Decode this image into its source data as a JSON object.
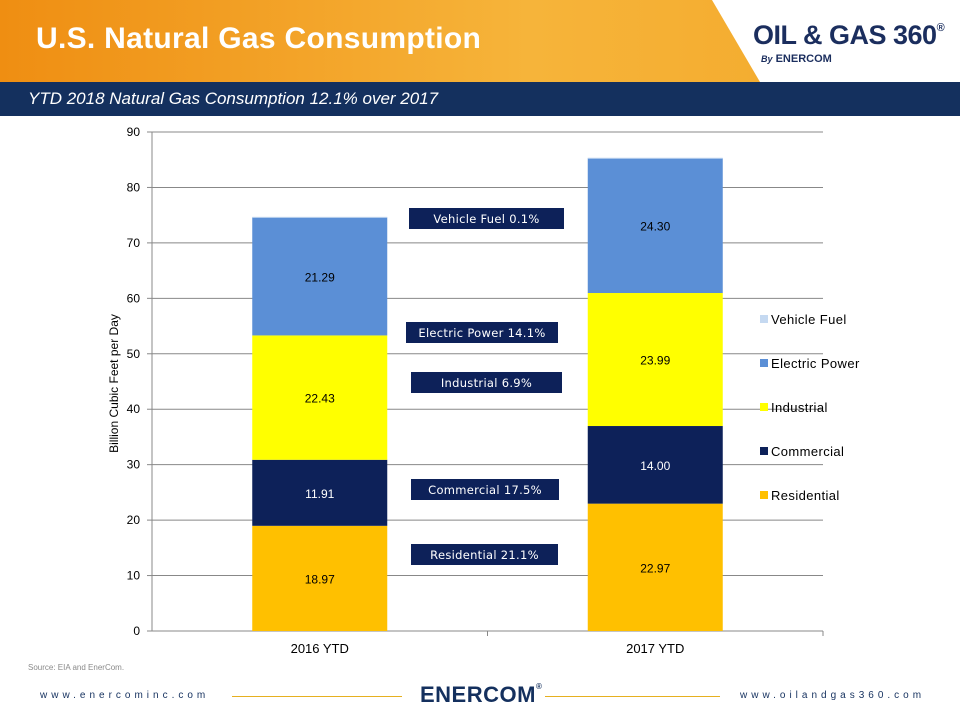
{
  "header": {
    "title": "U.S. Natural Gas Consumption",
    "subtitle": "YTD 2018 Natural Gas Consumption 12.1% over 2017",
    "logo_main": "OIL & GAS 360",
    "logo_mark": "®",
    "logo_by": "By",
    "logo_company": "ENERCOM"
  },
  "chart_data": {
    "type": "bar",
    "stacked": true,
    "categories": [
      "2016 YTD",
      "2017 YTD"
    ],
    "ylabel": "Billion Cubic Feet per Day",
    "xlabel": "",
    "ylim": [
      0,
      90
    ],
    "yticks": [
      0,
      10,
      20,
      30,
      40,
      50,
      60,
      70,
      80,
      90
    ],
    "grid": true,
    "legend_position": "right",
    "series": [
      {
        "name": "Residential",
        "values": [
          18.97,
          22.97
        ],
        "labels": [
          "18.97",
          "22.97"
        ],
        "color": "#ffc000"
      },
      {
        "name": "Commercial",
        "values": [
          11.91,
          14.0
        ],
        "labels": [
          "11.91",
          "14.00"
        ],
        "color": "#0d2159"
      },
      {
        "name": "Industrial",
        "values": [
          22.43,
          23.99
        ],
        "labels": [
          "22.43",
          "23.99"
        ],
        "color": "#ffff00"
      },
      {
        "name": "Electric Power",
        "values": [
          21.29,
          24.3
        ],
        "labels": [
          "21.29",
          "24.30"
        ],
        "color": "#5b8fd6"
      },
      {
        "name": "Vehicle Fuel",
        "values": [
          0.1,
          0.1
        ],
        "labels": [
          "",
          ""
        ],
        "color": "#c5d9f1"
      }
    ],
    "legend_order": [
      "Vehicle Fuel",
      "Electric Power",
      "Industrial",
      "Commercial",
      "Residential"
    ],
    "annotations": [
      {
        "text": "Vehicle Fuel 0.1%",
        "series": "Vehicle Fuel"
      },
      {
        "text": "Electric Power 14.1%",
        "series": "Electric Power"
      },
      {
        "text": "Industrial 6.9%",
        "series": "Industrial"
      },
      {
        "text": "Commercial 17.5%",
        "series": "Commercial"
      },
      {
        "text": "Residential 21.1%",
        "series": "Residential"
      }
    ]
  },
  "source": "Source: EIA and EnerCom.",
  "footer": {
    "left_url": "www.enercominc.com",
    "right_url": "www.oilandgas360.com",
    "logo": "ENERCOM",
    "logo_mark": "®"
  }
}
